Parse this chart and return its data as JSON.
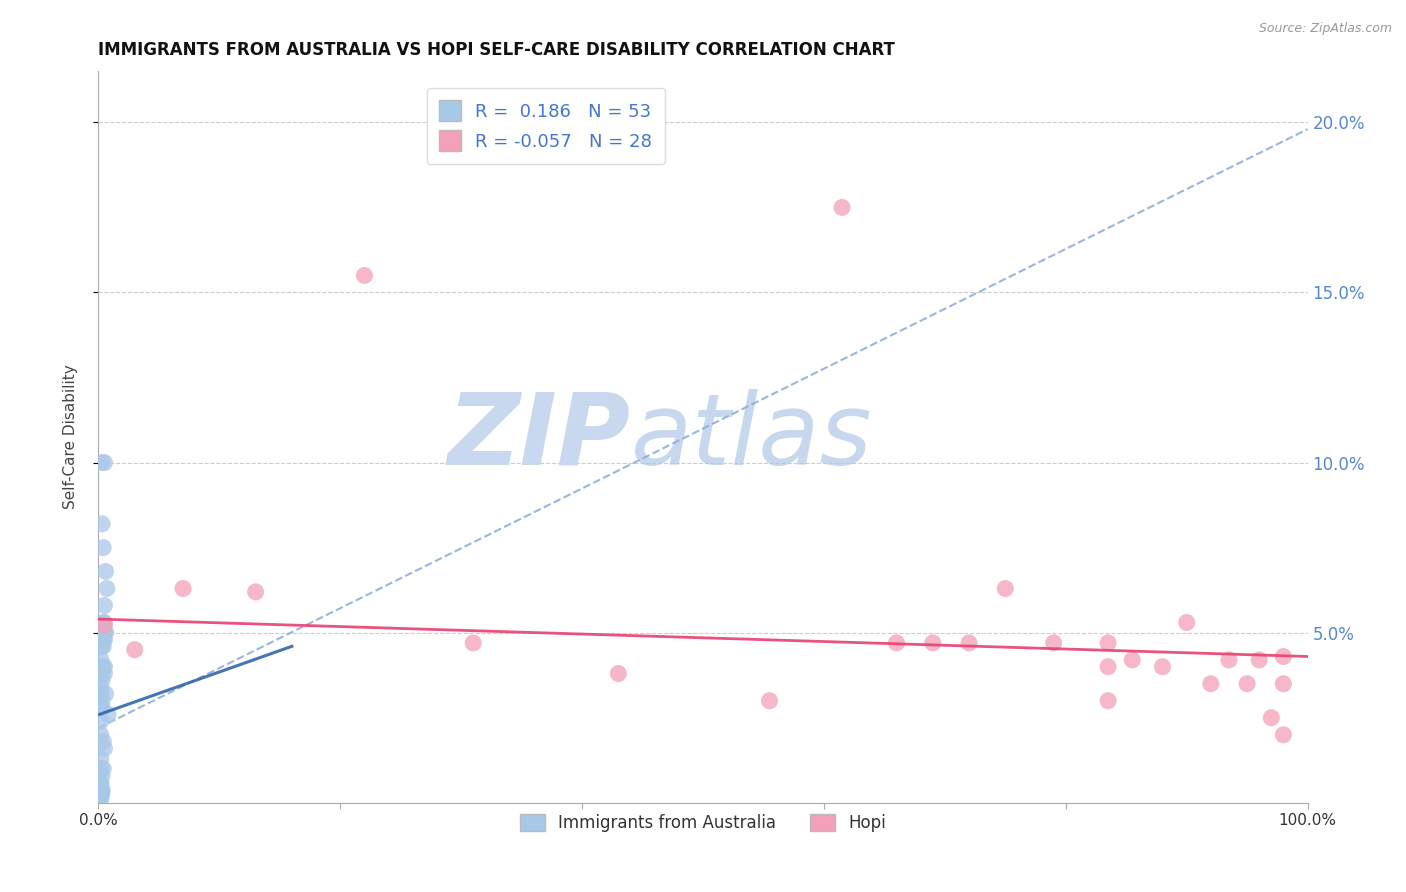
{
  "title": "IMMIGRANTS FROM AUSTRALIA VS HOPI SELF-CARE DISABILITY CORRELATION CHART",
  "source": "Source: ZipAtlas.com",
  "ylabel": "Self-Care Disability",
  "r_australia": 0.186,
  "n_australia": 53,
  "r_hopi": -0.057,
  "n_hopi": 28,
  "xlim": [
    0.0,
    1.0
  ],
  "ylim": [
    0.0,
    0.215
  ],
  "yticks": [
    0.05,
    0.1,
    0.15,
    0.2
  ],
  "ytick_labels": [
    "5.0%",
    "10.0%",
    "15.0%",
    "20.0%"
  ],
  "xticks": [
    0.0,
    0.2,
    0.4,
    0.6,
    0.8,
    1.0
  ],
  "xtick_labels": [
    "0.0%",
    "",
    "",
    "",
    "",
    "100.0%"
  ],
  "australia_color": "#a8c8e8",
  "hopi_color": "#f4a0b8",
  "trend_aus_dashed_color": "#88aad8",
  "trend_aus_solid_color": "#3366aa",
  "trend_hopi_color": "#e84070",
  "watermark_zip_color": "#c8d8ee",
  "watermark_atlas_color": "#b0c8e8",
  "aus_x": [
    0.003,
    0.005,
    0.003,
    0.004,
    0.006,
    0.007,
    0.005,
    0.004,
    0.003,
    0.005,
    0.004,
    0.005,
    0.005,
    0.003,
    0.002,
    0.003,
    0.004,
    0.006,
    0.005,
    0.003,
    0.002,
    0.004,
    0.005,
    0.003,
    0.002,
    0.006,
    0.003,
    0.002,
    0.008,
    0.005,
    0.003,
    0.002,
    0.003,
    0.002,
    0.002,
    0.004,
    0.005,
    0.002,
    0.002,
    0.003,
    0.002,
    0.002,
    0.002,
    0.003,
    0.002,
    0.002,
    0.002,
    0.003,
    0.002,
    0.002,
    0.004,
    0.002,
    0.002
  ],
  "aus_y": [
    0.1,
    0.1,
    0.082,
    0.075,
    0.068,
    0.063,
    0.058,
    0.053,
    0.048,
    0.053,
    0.048,
    0.05,
    0.05,
    0.048,
    0.05,
    0.048,
    0.046,
    0.05,
    0.048,
    0.046,
    0.042,
    0.04,
    0.038,
    0.036,
    0.034,
    0.032,
    0.03,
    0.028,
    0.026,
    0.04,
    0.038,
    0.032,
    0.028,
    0.024,
    0.02,
    0.018,
    0.016,
    0.013,
    0.01,
    0.008,
    0.006,
    0.005,
    0.004,
    0.003,
    0.003,
    0.002,
    0.002,
    0.004,
    0.003,
    0.001,
    0.01,
    0.005,
    0.003
  ],
  "hopi_x": [
    0.005,
    0.03,
    0.07,
    0.13,
    0.22,
    0.31,
    0.43,
    0.555,
    0.615,
    0.66,
    0.69,
    0.72,
    0.75,
    0.79,
    0.835,
    0.855,
    0.88,
    0.9,
    0.92,
    0.935,
    0.95,
    0.96,
    0.97,
    0.98,
    0.835,
    0.98,
    0.835,
    0.98
  ],
  "hopi_y": [
    0.052,
    0.045,
    0.063,
    0.062,
    0.155,
    0.047,
    0.038,
    0.03,
    0.175,
    0.047,
    0.047,
    0.047,
    0.063,
    0.047,
    0.047,
    0.042,
    0.04,
    0.053,
    0.035,
    0.042,
    0.035,
    0.042,
    0.025,
    0.043,
    0.04,
    0.035,
    0.03,
    0.02
  ],
  "trend_aus_dashed_x0": 0.0,
  "trend_aus_dashed_y0": 0.022,
  "trend_aus_dashed_x1": 1.0,
  "trend_aus_dashed_y1": 0.198,
  "trend_aus_solid_x0": 0.001,
  "trend_aus_solid_y0": 0.026,
  "trend_aus_solid_x1": 0.16,
  "trend_aus_solid_y1": 0.046,
  "trend_hopi_x0": 0.0,
  "trend_hopi_y0": 0.054,
  "trend_hopi_x1": 1.0,
  "trend_hopi_y1": 0.043
}
